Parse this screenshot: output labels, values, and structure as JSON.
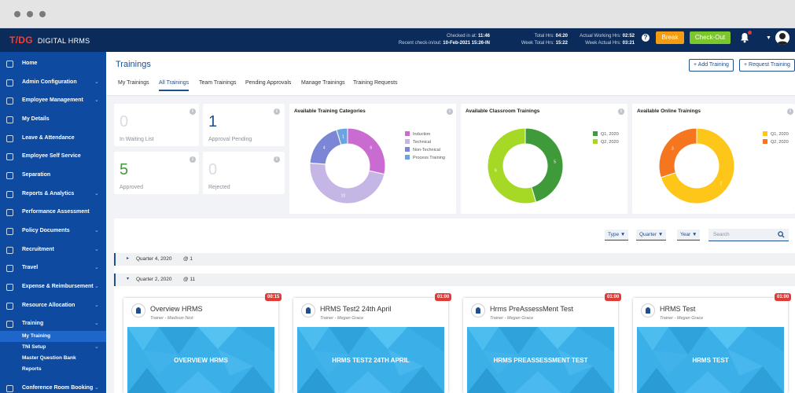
{
  "header": {
    "logo_mark": "T/DG",
    "logo_word": "DIGITAL HRMS",
    "checked_in_label": "Checked in at:",
    "checked_in_value": "11:46",
    "recent_checkout_label": "Recent check-in/out:",
    "recent_checkout_value": "10-Feb-2021 15:26-IN",
    "total_hrs_label": "Total Hrs:",
    "total_hrs_value": "04:20",
    "week_total_label": "Week Total Hrs:",
    "week_total_value": "15:22",
    "actual_working_label": "Actual Working Hrs:",
    "actual_working_value": "02:52",
    "week_actual_label": "Week Actual Hrs:",
    "week_actual_value": "03:21",
    "break_label": "Break",
    "checkout_label": "Check-Out",
    "help_glyph": "?",
    "icons": [
      "help-icon",
      "bell-icon",
      "avatar"
    ]
  },
  "sidebar": {
    "items": [
      {
        "label": "Home",
        "icon": "home-icon",
        "has_submenu": false
      },
      {
        "label": "Admin Configuration",
        "icon": "settings-icon",
        "has_submenu": true
      },
      {
        "label": "Employee Management",
        "icon": "user-icon",
        "has_submenu": true
      },
      {
        "label": "My Details",
        "icon": "user-icon",
        "has_submenu": false
      },
      {
        "label": "Leave & Attendance",
        "icon": "calendar-icon",
        "has_submenu": false
      },
      {
        "label": "Employee Self Service",
        "icon": "user-icon",
        "has_submenu": false
      },
      {
        "label": "Separation",
        "icon": "document-icon",
        "has_submenu": false
      },
      {
        "label": "Reports & Analytics",
        "icon": "report-icon",
        "has_submenu": true
      },
      {
        "label": "Performance Assessment",
        "icon": "search-icon",
        "has_submenu": false
      },
      {
        "label": "Policy Documents",
        "icon": "document-icon",
        "has_submenu": true
      },
      {
        "label": "Recruitment",
        "icon": "team-icon",
        "has_submenu": true
      },
      {
        "label": "Travel",
        "icon": "plane-icon",
        "has_submenu": true
      },
      {
        "label": "Expense & Reimbursement",
        "icon": "wallet-icon",
        "has_submenu": true
      },
      {
        "label": "Resource Allocation",
        "icon": "handshake-icon",
        "has_submenu": true
      },
      {
        "label": "Training",
        "icon": "training-icon",
        "has_submenu": true
      },
      {
        "label": "Conference Room Booking",
        "icon": "user-icon",
        "has_submenu": true
      }
    ],
    "training_sub": [
      {
        "label": "My Training",
        "active": true,
        "has_submenu": false
      },
      {
        "label": "TNI Setup",
        "active": false,
        "has_submenu": true
      },
      {
        "label": "Master Question Bank",
        "active": false,
        "has_submenu": false
      },
      {
        "label": "Reports",
        "active": false,
        "has_submenu": false
      }
    ],
    "colors": {
      "bg": "#0e4ba0",
      "active_sub": "#1e66c9"
    }
  },
  "page": {
    "title": "Trainings",
    "add_training": "+ Add Training",
    "request_training": "+ Request Training",
    "tabs": [
      "My Trainings",
      "All Trainings",
      "Team Trainings",
      "Pending Approvals",
      "Manage Trainings",
      "Training Requests"
    ],
    "active_tab": "All Trainings"
  },
  "stats": [
    {
      "value": "0",
      "label": "In Waiting List",
      "color": "#d8dde3"
    },
    {
      "value": "1",
      "label": "Approval Pending",
      "color": "#1e4f8f"
    },
    {
      "value": "5",
      "label": "Approved",
      "color": "#3f9a3a"
    },
    {
      "value": "0",
      "label": "Rejected",
      "color": "#d8dde3"
    }
  ],
  "info_glyph": "i",
  "charts": [
    {
      "title": "Available Training Categories",
      "segments": [
        {
          "label": "Induction",
          "value": 6,
          "color": "#c96bd1"
        },
        {
          "label": "Technical",
          "value": 10,
          "color": "#c5b6e6"
        },
        {
          "label": "Non-Technical",
          "value": 4,
          "color": "#7b86d6"
        },
        {
          "label": "Process Training",
          "value": 1,
          "color": "#6aa5df"
        }
      ]
    },
    {
      "title": "Available Classroom Trainings",
      "segments": [
        {
          "label": "Q1, 2020",
          "value": 5,
          "color": "#3f9a3a"
        },
        {
          "label": "Q2, 2020",
          "value": 6,
          "color": "#a6d826"
        }
      ]
    },
    {
      "title": "Available Online Trainings",
      "segments": [
        {
          "label": "Q1, 2020",
          "value": 7,
          "color": "#ffc61a"
        },
        {
          "label": "Q2, 2020",
          "value": 3,
          "color": "#f5761f"
        }
      ]
    }
  ],
  "filters": {
    "type": "Type ▼",
    "quarter": "Quarter ▼",
    "year": "Year ▼",
    "search_placeholder": "Search"
  },
  "groups": [
    {
      "caret": "▸",
      "name": "Quarter 4, 2020",
      "count": "@ 1"
    },
    {
      "caret": "▾",
      "name": "Quarter 2, 2020",
      "count": "@ 11"
    }
  ],
  "trainings": [
    {
      "name": "Overview HRMS",
      "trainer": "Trainer - Madison Nick",
      "duration": "00:15",
      "banner": "OVERVIEW HRMS"
    },
    {
      "name": "HRMS Test2 24th April",
      "trainer": "Trainer - Megan Grace",
      "duration": "01:00",
      "banner": "HRMS TEST2 24TH APRIL"
    },
    {
      "name": "Hrms PreAssessMent Test",
      "trainer": "Trainer - Megan Grace",
      "duration": "01:00",
      "banner": "HRMS PREASSESSMENT TEST"
    },
    {
      "name": "HRMS Test",
      "trainer": "Trainer - Megan Grace",
      "duration": "01:00",
      "banner": "HRMS TEST"
    }
  ]
}
